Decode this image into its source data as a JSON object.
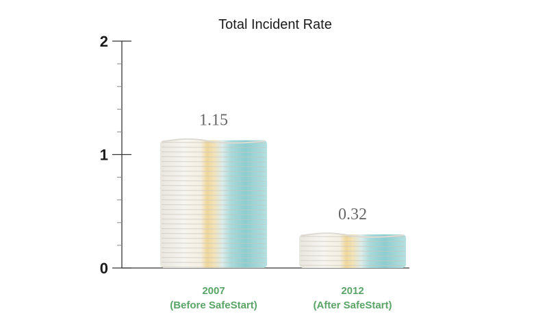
{
  "chart_data": {
    "type": "bar",
    "title": "Total Incident Rate",
    "categories": [
      [
        "2007",
        "(Before SafeStart)"
      ],
      [
        "2012",
        "(After SafeStart)"
      ]
    ],
    "values": [
      1.15,
      0.32
    ],
    "value_labels": [
      "1.15",
      "0.32"
    ],
    "ylim": [
      0,
      2
    ],
    "yticks": [
      "0",
      "1",
      "2"
    ],
    "minor_ticks_per_major": 5,
    "xlabel": "",
    "ylabel": "",
    "grid": false,
    "legend": "none",
    "bar_style": "stacked-diapers",
    "colors": {
      "axis": "#333333",
      "category_label": "#5aa468",
      "value_label": "#666666",
      "diaper_white": "#f2f0eb",
      "diaper_shadow": "#c9c5bc",
      "diaper_yellow": "#ecc97a",
      "diaper_teal": "#8fcfd2"
    }
  }
}
